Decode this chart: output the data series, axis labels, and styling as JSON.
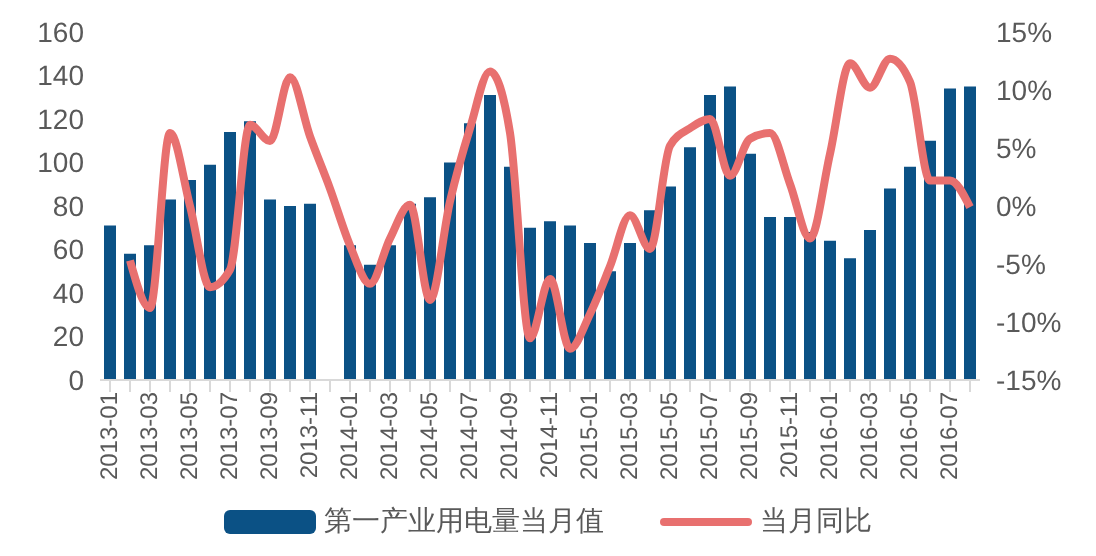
{
  "chart_data": {
    "type": "bar",
    "categories": [
      "2013-01",
      null,
      "2013-03",
      null,
      "2013-05",
      null,
      "2013-07",
      null,
      "2013-09",
      null,
      "2013-11",
      null,
      "2014-01",
      null,
      "2014-03",
      null,
      "2014-05",
      null,
      "2014-07",
      null,
      "2014-09",
      null,
      "2014-11",
      null,
      "2015-01",
      null,
      "2015-03",
      null,
      "2015-05",
      null,
      "2015-07",
      null,
      "2015-09",
      null,
      "2015-11",
      null,
      "2016-01",
      null,
      "2016-03",
      null,
      "2016-05",
      null,
      "2016-07",
      null
    ],
    "series": [
      {
        "name": "第一产业用电量当月值",
        "color": "#0b5185",
        "values": [
          71,
          58,
          62,
          83,
          92,
          99,
          114,
          119,
          83,
          80,
          81,
          null,
          62,
          53,
          62,
          81,
          84,
          100,
          118,
          131,
          98,
          70,
          73,
          71,
          63,
          50,
          63,
          78,
          89,
          107,
          131,
          135,
          104,
          75,
          75,
          68,
          64,
          56,
          69,
          88,
          98,
          110,
          134,
          135
        ]
      },
      {
        "name": "当月同比",
        "type": "line",
        "axis": "y2",
        "color": "#e8706f",
        "values": [
          null,
          -4.7,
          -8.8,
          6.3,
          0,
          -7,
          -5.5,
          7,
          5.6,
          11.1,
          6,
          1.5,
          -3.4,
          -6.7,
          -2.8,
          0.1,
          -8.1,
          0.4,
          6.7,
          11.6,
          6.3,
          -11.4,
          -6.3,
          -12.3,
          -9.3,
          -5.2,
          -0.8,
          -3.7,
          5.2,
          6.7,
          7.5,
          2.6,
          5.8,
          6.3,
          1.9,
          -2.8,
          4.5,
          12.3,
          10.2,
          12.7,
          10.7,
          2.2,
          2.2,
          -0.1
        ]
      }
    ],
    "ylim": [
      0,
      160
    ],
    "yticks": [
      0,
      20,
      40,
      60,
      80,
      100,
      120,
      140,
      160
    ],
    "y2lim": [
      -15,
      15
    ],
    "y2ticks": [
      {
        "value": -15,
        "label": "-15%"
      },
      {
        "value": -10,
        "label": "-10%"
      },
      {
        "value": -5,
        "label": "-5%"
      },
      {
        "value": 0,
        "label": "0%"
      },
      {
        "value": 5,
        "label": "5%"
      },
      {
        "value": 10,
        "label": "10%"
      },
      {
        "value": 15,
        "label": "15%"
      }
    ],
    "legend": "bottom",
    "grid": false,
    "marker": "none"
  }
}
